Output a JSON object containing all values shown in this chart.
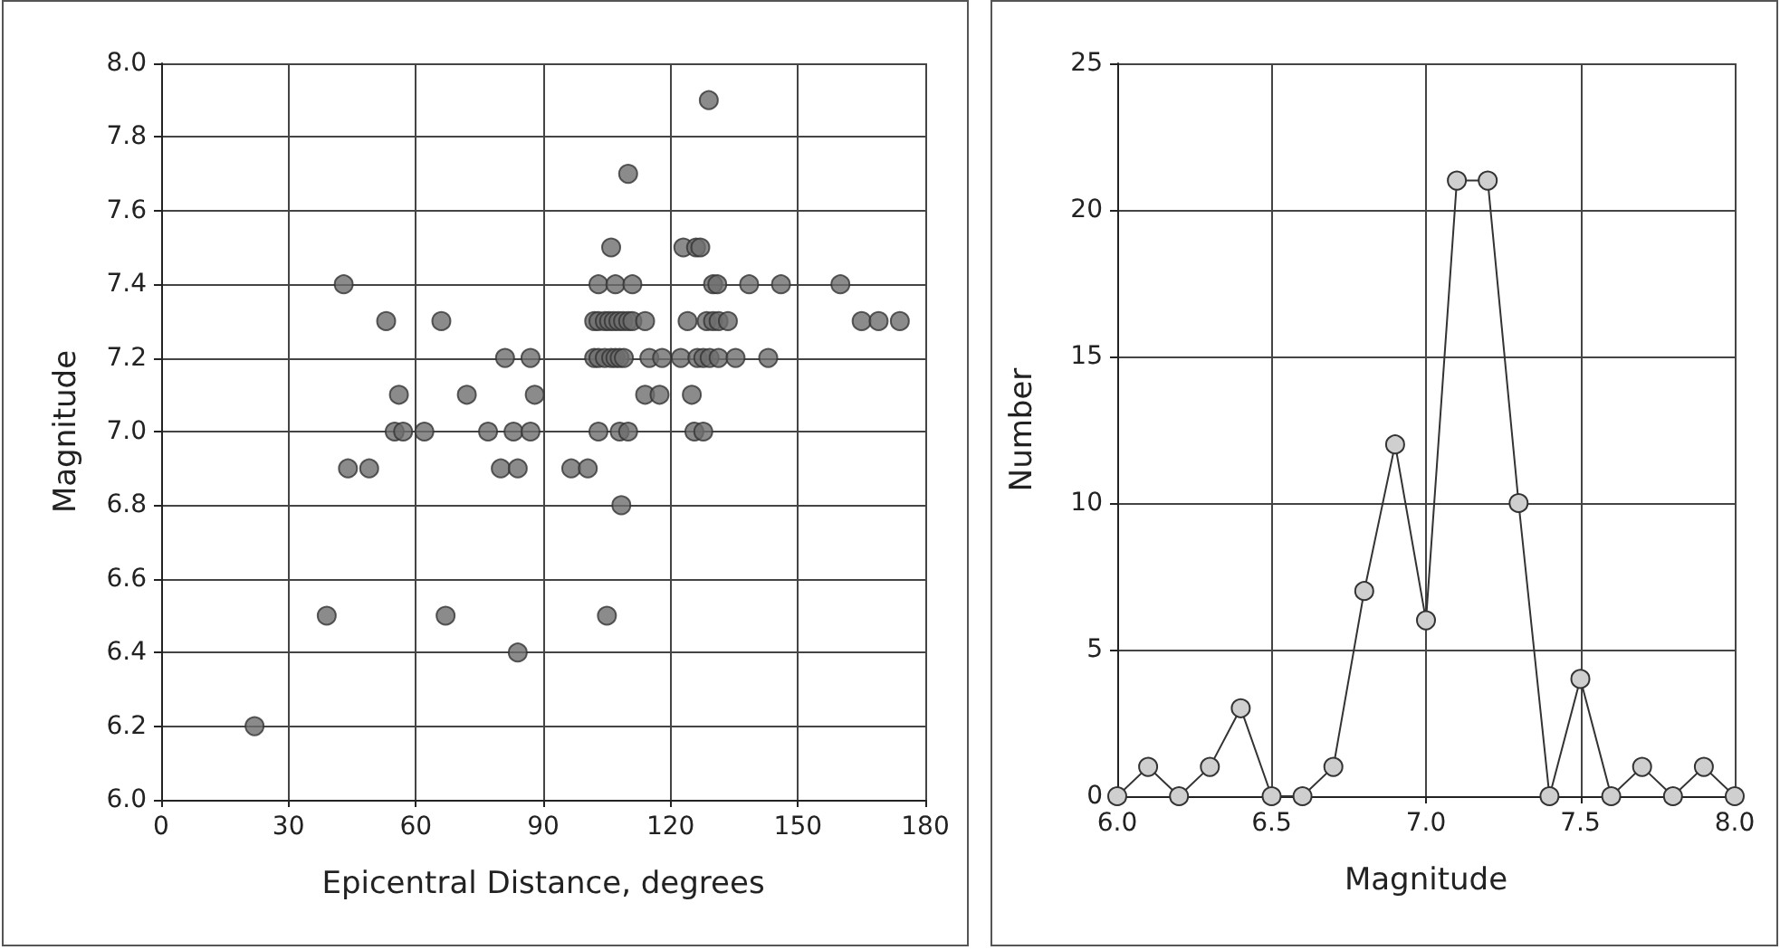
{
  "chart_data": [
    {
      "type": "scatter",
      "xlabel": "Epicentral Distance, degrees",
      "ylabel": "Magnitude",
      "color": "#6e6e6e",
      "marker": "circle",
      "grid": true,
      "x": [
        22,
        39,
        43,
        44,
        49,
        53,
        56,
        55,
        57,
        62,
        66,
        67,
        72,
        77,
        80,
        81,
        83,
        84,
        84,
        87,
        87,
        88,
        129,
        110,
        106,
        123,
        126,
        127,
        103,
        107,
        111,
        130,
        131,
        138.5,
        146,
        160,
        102,
        103,
        104.5,
        105.5,
        106.6,
        107.7,
        108.8,
        110,
        111,
        114,
        124,
        128.5,
        130,
        131.3,
        133.5,
        165,
        169,
        174,
        102,
        103,
        104.5,
        106,
        107,
        108,
        109,
        115,
        118,
        122.4,
        126.3,
        127.7,
        129.2,
        131.3,
        135.3,
        143,
        114,
        117.4,
        125,
        103,
        108,
        110,
        125.6,
        127.7,
        96.6,
        100.5,
        108.4,
        105
      ],
      "values": [
        6.2,
        6.5,
        7.4,
        6.9,
        6.9,
        7.3,
        7.1,
        7.0,
        7.0,
        7.0,
        7.3,
        6.5,
        7.1,
        7.0,
        6.9,
        7.2,
        7.0,
        6.9,
        6.4,
        7.2,
        7.0,
        7.1,
        7.9,
        7.7,
        7.5,
        7.5,
        7.5,
        7.5,
        7.4,
        7.4,
        7.4,
        7.4,
        7.4,
        7.4,
        7.4,
        7.4,
        7.3,
        7.3,
        7.3,
        7.3,
        7.3,
        7.3,
        7.3,
        7.3,
        7.3,
        7.3,
        7.3,
        7.3,
        7.3,
        7.3,
        7.3,
        7.3,
        7.3,
        7.3,
        7.2,
        7.2,
        7.2,
        7.2,
        7.2,
        7.2,
        7.2,
        7.2,
        7.2,
        7.2,
        7.2,
        7.2,
        7.2,
        7.2,
        7.2,
        7.2,
        7.1,
        7.1,
        7.1,
        7.0,
        7.0,
        7.0,
        7.0,
        7.0,
        6.9,
        6.9,
        6.8,
        6.5
      ],
      "xlim": [
        0,
        180
      ],
      "xticks": [
        0,
        30,
        60,
        90,
        120,
        150,
        180
      ],
      "ylim": [
        6,
        8
      ],
      "yticks": [
        {
          "value": 6,
          "label": "6.0"
        },
        {
          "value": 6.2,
          "label": "6.2"
        },
        {
          "value": 6.4,
          "label": "6.4"
        },
        {
          "value": 6.6,
          "label": "6.6"
        },
        {
          "value": 6.8,
          "label": "6.8"
        },
        {
          "value": 7,
          "label": "7.0"
        },
        {
          "value": 7.2,
          "label": "7.2"
        },
        {
          "value": 7.4,
          "label": "7.4"
        },
        {
          "value": 7.6,
          "label": "7.6"
        },
        {
          "value": 7.8,
          "label": "7.8"
        },
        {
          "value": 8,
          "label": "8.0"
        }
      ]
    },
    {
      "type": "line",
      "xlabel": "Magnitude",
      "ylabel": "Number",
      "color": "#cfcfcf",
      "marker": "circle",
      "grid": true,
      "line_style": "solid",
      "x": [
        6.0,
        6.1,
        6.2,
        6.3,
        6.4,
        6.5,
        6.6,
        6.7,
        6.8,
        6.9,
        7.0,
        7.1,
        7.2,
        7.3,
        7.4,
        7.5,
        7.6,
        7.7,
        7.8,
        7.9,
        8.0
      ],
      "values": [
        0,
        1,
        0,
        1,
        3,
        0,
        0,
        1,
        7,
        12,
        6,
        21,
        21,
        10,
        0,
        4,
        0,
        1,
        0,
        1,
        0
      ],
      "xlim": [
        6,
        8
      ],
      "xticks": [
        {
          "value": 6,
          "label": "6.0"
        },
        {
          "value": 6.5,
          "label": "6.5"
        },
        {
          "value": 7,
          "label": "7.0"
        },
        {
          "value": 7.5,
          "label": "7.5"
        },
        {
          "value": 8,
          "label": "8.0"
        }
      ],
      "ylim": [
        0,
        25
      ],
      "yticks": [
        0,
        5,
        10,
        15,
        20,
        25
      ]
    }
  ]
}
